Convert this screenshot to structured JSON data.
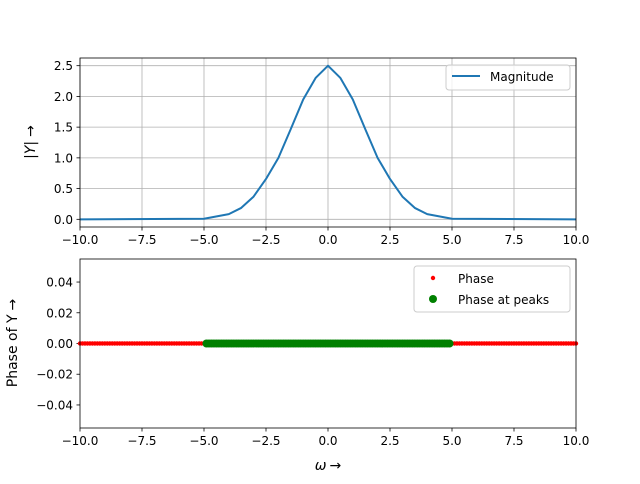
{
  "chart_data": [
    {
      "type": "line",
      "ylabel_plain": "|Y|",
      "ylabel_arrow": "→",
      "xlim": [
        -10,
        10
      ],
      "ylim": [
        -0.125,
        2.625
      ],
      "xticks": [
        -10,
        -7.5,
        -5,
        -2.5,
        0,
        2.5,
        5,
        7.5,
        10
      ],
      "xtick_labels": [
        "−10.0",
        "−7.5",
        "−5.0",
        "−2.5",
        "0.0",
        "2.5",
        "5.0",
        "7.5",
        "10.0"
      ],
      "yticks": [
        0,
        0.5,
        1,
        1.5,
        2,
        2.5
      ],
      "ytick_labels": [
        "0.0",
        "0.5",
        "1.0",
        "1.5",
        "2.0",
        "2.5"
      ],
      "grid": true,
      "legend_position": "top-right",
      "series": [
        {
          "name": "Magnitude",
          "color": "#1f77b4",
          "x": [
            -10,
            -5,
            -4,
            -3.5,
            -3,
            -2.5,
            -2,
            -1.5,
            -1,
            -0.5,
            0,
            0.5,
            1,
            1.5,
            2,
            2.5,
            3,
            3.5,
            4,
            5,
            10
          ],
          "y": [
            0,
            0.0093,
            0.084,
            0.1855,
            0.37,
            0.6565,
            1.0,
            1.47,
            1.95,
            2.3,
            2.5,
            2.3,
            1.95,
            1.47,
            1.0,
            0.6565,
            0.37,
            0.1855,
            0.084,
            0.0093,
            0
          ]
        }
      ]
    },
    {
      "type": "scatter",
      "ylabel_plain": "Phase of Y",
      "ylabel_arrow": "→",
      "xlabel_plain": "ω",
      "xlabel_arrow": "→",
      "xlim": [
        -10,
        10
      ],
      "ylim": [
        -0.055,
        0.055
      ],
      "xticks": [
        -10,
        -7.5,
        -5,
        -2.5,
        0,
        2.5,
        5,
        7.5,
        10
      ],
      "xtick_labels": [
        "−10.0",
        "−7.5",
        "−5.0",
        "−2.5",
        "0.0",
        "2.5",
        "5.0",
        "7.5",
        "10.0"
      ],
      "yticks": [
        -0.04,
        -0.02,
        0,
        0.02,
        0.04
      ],
      "ytick_labels": [
        "−0.04",
        "−0.02",
        "0.00",
        "0.02",
        "0.04"
      ],
      "grid": false,
      "legend_position": "top-right",
      "series": [
        {
          "name": "Phase",
          "color": "#ff0000",
          "x_range": [
            -10,
            10
          ],
          "point_count": 201,
          "y_value": 0
        },
        {
          "name": "Phase at peaks",
          "color": "#008000",
          "x_range": [
            -4.9,
            4.9
          ],
          "point_count": 99,
          "y_value": 0
        }
      ]
    }
  ]
}
